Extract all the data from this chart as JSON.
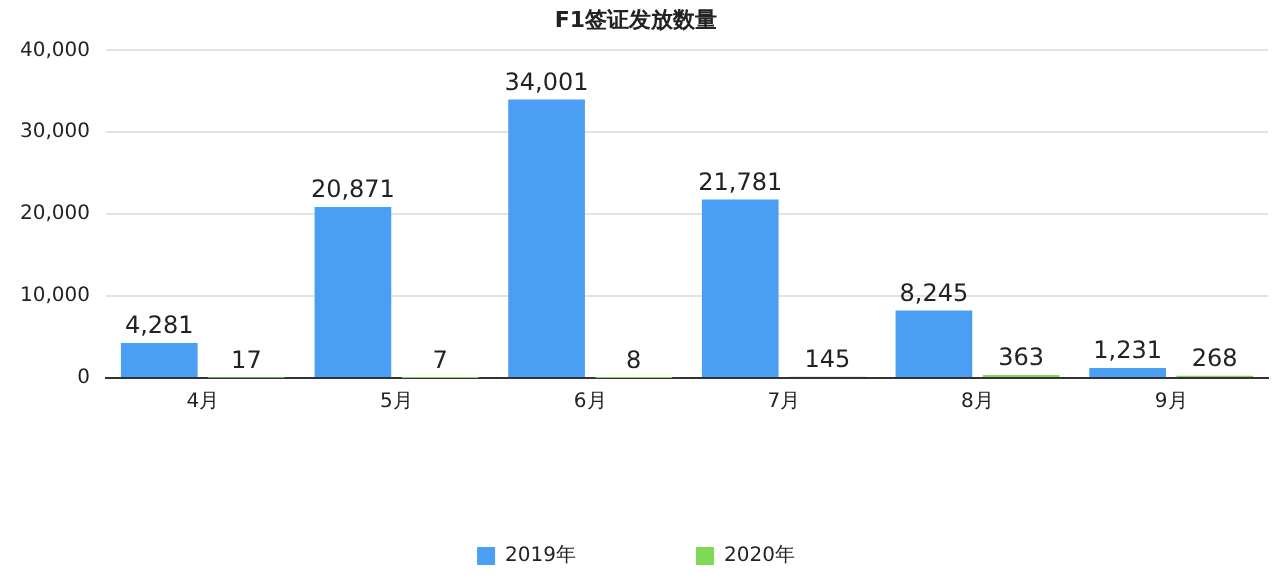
{
  "chart_data": {
    "type": "bar",
    "title": "F1签证发放数量",
    "categories": [
      "4月",
      "5月",
      "6月",
      "7月",
      "8月",
      "9月"
    ],
    "series": [
      {
        "name": "2019年",
        "color": "#4a9ff5",
        "values": [
          4281,
          20871,
          34001,
          21781,
          8245,
          1231
        ],
        "value_labels": [
          "4,281",
          "20,871",
          "34,001",
          "21,781",
          "8,245",
          "1,231"
        ]
      },
      {
        "name": "2020年",
        "color": "#7ed957",
        "values": [
          17,
          7,
          8,
          145,
          363,
          268
        ],
        "value_labels": [
          "17",
          "7",
          "8",
          "145",
          "363",
          "268"
        ]
      }
    ],
    "ylim": [
      0,
      40000
    ],
    "yticks": [
      0,
      {
        "value": 10000,
        "label": "10,000"
      },
      {
        "value": 20000,
        "label": "20,000"
      },
      {
        "value": 30000,
        "label": "30,000"
      },
      {
        "value": 40000,
        "label": "40,000"
      }
    ],
    "grid": "y",
    "legend": "bottom"
  }
}
